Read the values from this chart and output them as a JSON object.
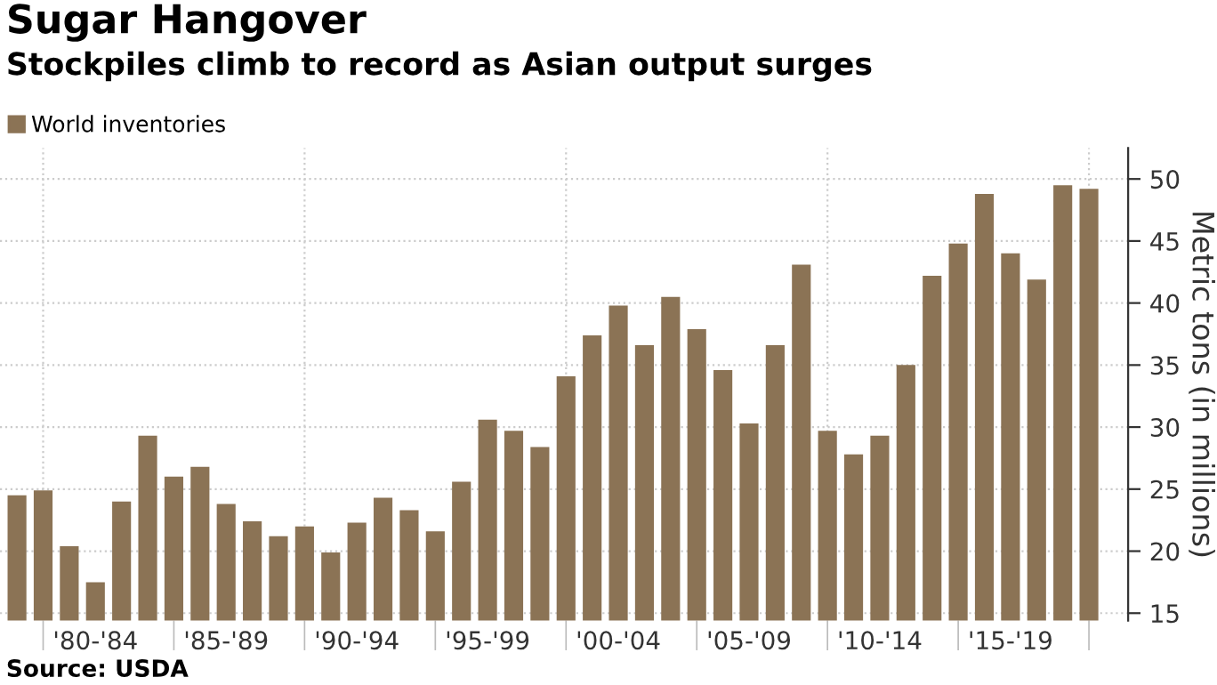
{
  "chart_data": {
    "type": "bar",
    "title": "Sugar Hangover",
    "subtitle": "Stockpiles climb to record as Asian output surges",
    "ylabel": "Metric tons (in millions)",
    "annotations": [
      "Source: USDA"
    ],
    "categories": [
      null,
      null,
      null,
      "'80-'84",
      null,
      null,
      null,
      null,
      "'85-'89",
      null,
      null,
      null,
      null,
      "'90-'94",
      null,
      null,
      null,
      null,
      "'95-'99",
      null,
      null,
      null,
      null,
      "'00-'04",
      null,
      null,
      null,
      null,
      "'05-'09",
      null,
      null,
      null,
      null,
      "'10-'14",
      null,
      null,
      null,
      null,
      "'15-'19",
      null,
      null,
      null
    ],
    "series": [
      {
        "name": "World inventories",
        "color": "#8b7355",
        "values": [
          24.5,
          24.9,
          20.4,
          17.5,
          24.0,
          29.3,
          26.0,
          26.8,
          23.8,
          22.4,
          21.2,
          22.0,
          19.9,
          22.3,
          24.3,
          23.3,
          21.6,
          25.6,
          30.6,
          29.7,
          28.4,
          34.1,
          37.4,
          39.8,
          36.6,
          40.5,
          37.9,
          34.6,
          30.3,
          36.6,
          43.1,
          29.7,
          27.8,
          29.3,
          35.0,
          42.2,
          44.8,
          48.8,
          44.0,
          41.9,
          49.5,
          49.2
        ]
      }
    ],
    "ylim": [
      14.4,
      52.5
    ],
    "yticks": [
      15,
      20,
      25,
      30,
      35,
      40,
      45,
      50
    ],
    "grid": true,
    "legend": "top left"
  }
}
